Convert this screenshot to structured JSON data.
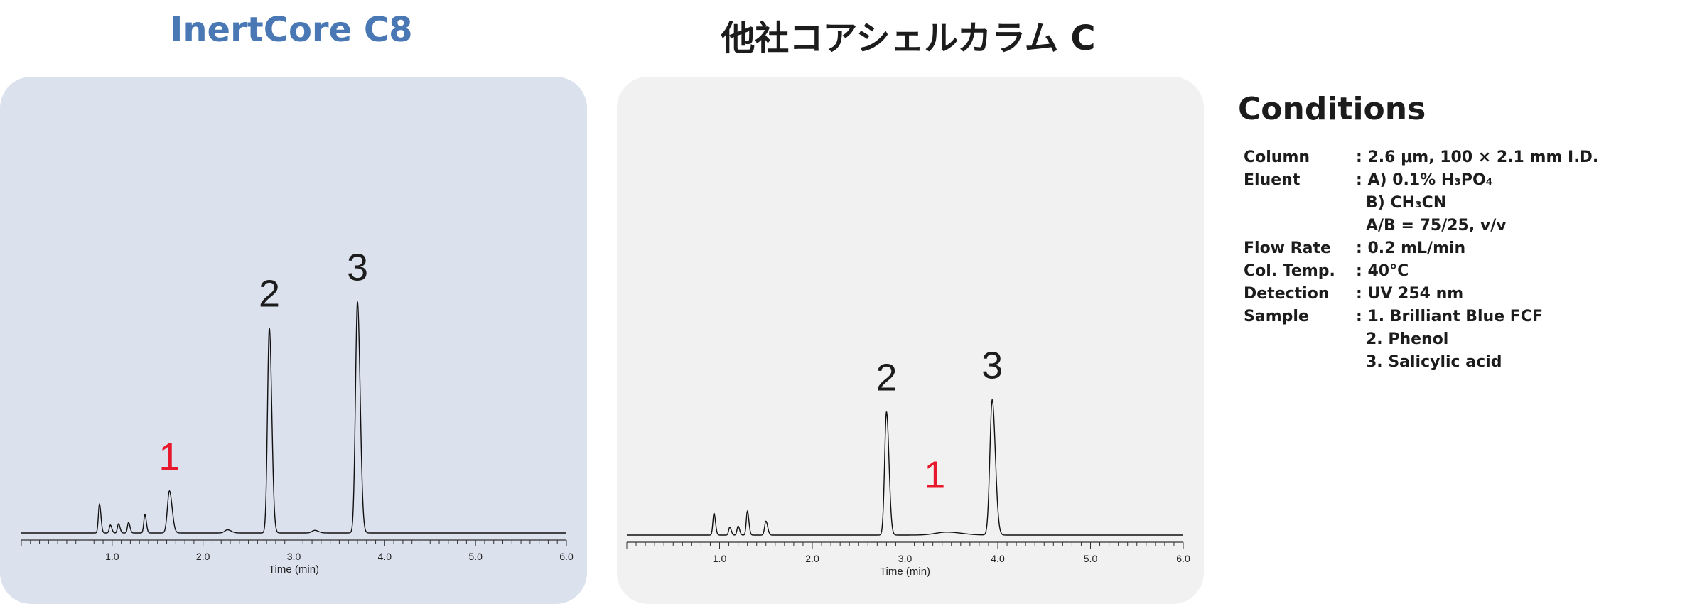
{
  "chart_data": [
    {
      "type": "line",
      "title": "InertCore C8",
      "title_color": "#4a78b4",
      "background": "#dce1ee",
      "xlabel": "Time (min)",
      "ylabel": "",
      "xlim": [
        0,
        6
      ],
      "x_tick_labels": [
        "1.0",
        "2.0",
        "3.0",
        "4.0",
        "5.0",
        "6.0"
      ],
      "grid": false,
      "baseline_height": 0,
      "peaks": [
        {
          "t": 0.86,
          "h": 0.11,
          "w": 0.012
        },
        {
          "t": 0.98,
          "h": 0.03,
          "w": 0.012
        },
        {
          "t": 1.07,
          "h": 0.035,
          "w": 0.012
        },
        {
          "t": 1.18,
          "h": 0.04,
          "w": 0.012
        },
        {
          "t": 1.36,
          "h": 0.07,
          "w": 0.012
        },
        {
          "t": 1.63,
          "h": 0.16,
          "w": 0.022
        },
        {
          "t": 2.27,
          "h": 0.012,
          "w": 0.03
        },
        {
          "t": 2.73,
          "h": 0.78,
          "w": 0.02
        },
        {
          "t": 3.23,
          "h": 0.01,
          "w": 0.03
        },
        {
          "t": 3.7,
          "h": 0.88,
          "w": 0.022
        }
      ],
      "peak_labels": [
        {
          "text": "1",
          "t": 1.63,
          "h": 0.16,
          "color": "#e8192c"
        },
        {
          "text": "2",
          "t": 2.73,
          "h": 0.78,
          "color": "#1c1c1c"
        },
        {
          "text": "3",
          "t": 3.7,
          "h": 0.88,
          "color": "#1c1c1c"
        }
      ]
    },
    {
      "type": "line",
      "title": "他社コアシェルカラム C",
      "title_color": "#1c1c1c",
      "background": "#f1f1f1",
      "xlabel": "Time (min)",
      "ylabel": "",
      "xlim": [
        0,
        6
      ],
      "x_tick_labels": [
        "1.0",
        "2.0",
        "3.0",
        "4.0",
        "5.0",
        "6.0"
      ],
      "grid": false,
      "baseline_height": 0,
      "peaks": [
        {
          "t": 0.94,
          "h": 0.11,
          "w": 0.012
        },
        {
          "t": 1.11,
          "h": 0.04,
          "w": 0.012
        },
        {
          "t": 1.2,
          "h": 0.045,
          "w": 0.012
        },
        {
          "t": 1.3,
          "h": 0.12,
          "w": 0.012
        },
        {
          "t": 1.5,
          "h": 0.07,
          "w": 0.014
        },
        {
          "t": 2.8,
          "h": 0.62,
          "w": 0.02
        },
        {
          "t": 3.45,
          "h": 0.015,
          "w": 0.12
        },
        {
          "t": 3.94,
          "h": 0.68,
          "w": 0.025
        }
      ],
      "peak_labels": [
        {
          "text": "1",
          "t": 3.32,
          "h": 0.13,
          "color": "#e8192c"
        },
        {
          "text": "2",
          "t": 2.8,
          "h": 0.62,
          "color": "#1c1c1c"
        },
        {
          "text": "3",
          "t": 3.94,
          "h": 0.68,
          "color": "#1c1c1c"
        }
      ]
    }
  ],
  "conditions": {
    "heading": "Conditions",
    "rows": [
      {
        "label": "Column",
        "values": [
          ": 2.6 μm, 100 × 2.1 mm I.D."
        ]
      },
      {
        "label": "Eluent",
        "values": [
          ": A) 0.1% H₃PO₄",
          "B) CH₃CN",
          "A/B = 75/25, v/v"
        ]
      },
      {
        "label": "Flow Rate",
        "values": [
          ": 0.2 mL/min"
        ]
      },
      {
        "label": "Col. Temp.",
        "values": [
          ": 40°C"
        ]
      },
      {
        "label": "Detection",
        "values": [
          ": UV 254 nm"
        ]
      },
      {
        "label": "Sample",
        "values": [
          ": 1. Brilliant Blue FCF",
          "2. Phenol",
          "3. Salicylic acid"
        ]
      }
    ]
  }
}
